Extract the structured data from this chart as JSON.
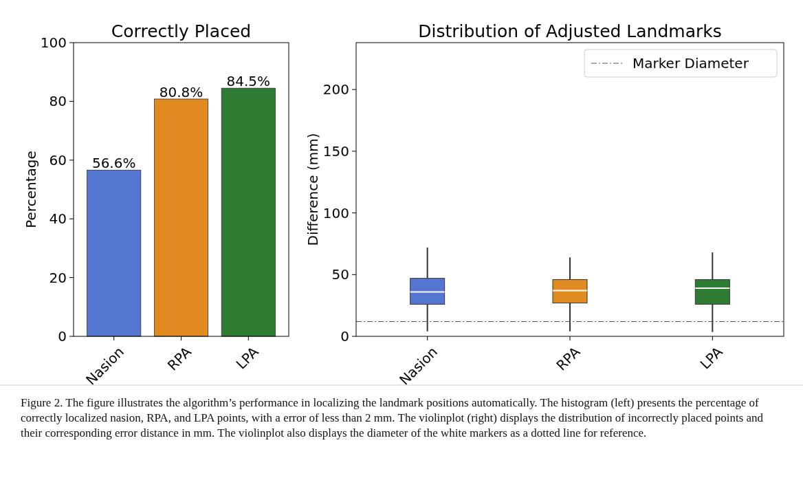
{
  "chart_data": [
    {
      "type": "bar",
      "title": "Correctly Placed",
      "ylabel": "Percentage",
      "categories": [
        "Nasion",
        "RPA",
        "LPA"
      ],
      "values": [
        56.6,
        80.8,
        84.5
      ],
      "colors": [
        "#5475d0",
        "#e08a20",
        "#2e7d32"
      ],
      "value_labels": [
        "56.6%",
        "80.8%",
        "84.5%"
      ],
      "ylim": [
        0,
        100
      ],
      "yticks": [
        0,
        20,
        40,
        60,
        80,
        100
      ],
      "annotations": [
        "Figure 2. The figure illustrates the algorithm’s performance in localizing the landmark positions automatically. The histogram (left) presents the percentage of correctly localized nasion, RPA, and LPA points, with a error of less than 2 mm. The violinplot (right) displays the distribution of incorrectly placed points and their corresponding error distance in mm. The violinplot also displays the diameter of the white markers as a dotted line for reference."
      ]
    },
    {
      "type": "box",
      "title": "Distribution of Adjusted Landmarks",
      "ylabel": "Difference (mm)",
      "categories": [
        "Nasion",
        "RPA",
        "LPA"
      ],
      "colors": [
        "#5475d0",
        "#e08a20",
        "#2e7d32"
      ],
      "boxes": [
        {
          "low": 4,
          "q1": 26,
          "median": 36,
          "q3": 47,
          "high": 72
        },
        {
          "low": 4,
          "q1": 27,
          "median": 37,
          "q3": 46,
          "high": 64
        },
        {
          "low": 3.5,
          "q1": 26,
          "median": 39,
          "q3": 46,
          "high": 68
        }
      ],
      "ylim": [
        0,
        238
      ],
      "yticks": [
        0,
        50,
        100,
        150,
        200
      ],
      "ref_lines": [
        {
          "axis": "y",
          "value": 12,
          "label": "Marker Diameter",
          "color": "#555555"
        }
      ],
      "legend": "top right"
    }
  ]
}
